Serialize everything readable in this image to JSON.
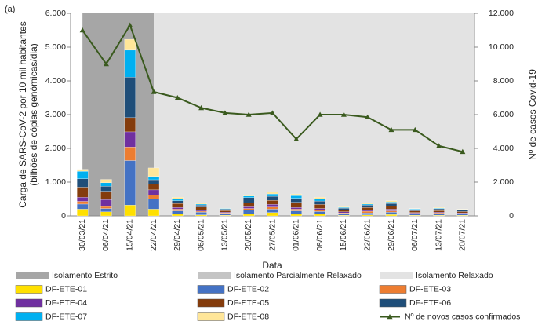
{
  "chart_data": {
    "type": "stacked_bar_line",
    "panel_label": "(a)",
    "xlabel": "Data",
    "ylabel": [
      "Carga de SARS-CoV-2 por 10 mil habitantes",
      "(bilhões de cópias genômicas/dia)"
    ],
    "y2label": "Nº de casos Covid-19",
    "categories": [
      "30/03/21",
      "06/04/21",
      "15/04/21",
      "22/04/21",
      "29/04/21",
      "06/05/21",
      "13/05/21",
      "20/05/21",
      "27/05/21",
      "01/06/21",
      "08/06/21",
      "15/06/21",
      "22/06/21",
      "29/06/21",
      "06/07/21",
      "13/07/21",
      "20/07/21"
    ],
    "ylim": [
      0,
      6
    ],
    "yticks": [
      0,
      {
        "value": 1,
        "label": "1.000"
      },
      {
        "value": 2,
        "label": "2.000"
      },
      {
        "value": 3,
        "label": "3.000"
      },
      {
        "value": 4,
        "label": "4.000"
      },
      {
        "value": 5,
        "label": "5.000"
      },
      {
        "value": 6,
        "label": "6.000"
      }
    ],
    "y2lim": [
      0,
      12000
    ],
    "y2ticks": [
      0,
      {
        "value": 2000,
        "label": "2.000"
      },
      {
        "value": 4000,
        "label": "4.000"
      },
      {
        "value": 6000,
        "label": "6.000"
      },
      {
        "value": 8000,
        "label": "8.000"
      },
      {
        "value": 10000,
        "label": "10.000"
      },
      {
        "value": 12000,
        "label": "12.000"
      }
    ],
    "regions": [
      {
        "name": "Isolamento Estrito",
        "color": "#a6a6a6",
        "start": "30/03/21",
        "end": "22/04/21"
      },
      {
        "name": "Isolamento Parcialmente Relaxado",
        "color": "#c4c4c4"
      },
      {
        "name": "Isolamento Relaxado",
        "color": "#e3e3e3",
        "start": "22/04/21",
        "end": "20/07/21"
      }
    ],
    "series": [
      {
        "name": "DF-ETE-01",
        "color": "#ffe000",
        "values": [
          0.2,
          0.12,
          0.32,
          0.2,
          0.05,
          0.03,
          0.02,
          0.05,
          0.1,
          0.05,
          0.05,
          0.02,
          0.03,
          0.04,
          0.02,
          0.02,
          0.02
        ]
      },
      {
        "name": "DF-ETE-02",
        "color": "#4472c4",
        "values": [
          0.15,
          0.1,
          1.32,
          0.3,
          0.1,
          0.08,
          0.05,
          0.12,
          0.1,
          0.1,
          0.08,
          0.05,
          0.06,
          0.07,
          0.04,
          0.04,
          0.03
        ]
      },
      {
        "name": "DF-ETE-03",
        "color": "#ed7d31",
        "values": [
          0.08,
          0.06,
          0.4,
          0.12,
          0.05,
          0.03,
          0.02,
          0.05,
          0.06,
          0.05,
          0.04,
          0.02,
          0.05,
          0.04,
          0.02,
          0.03,
          0.02
        ]
      },
      {
        "name": "DF-ETE-04",
        "color": "#7030a0",
        "values": [
          0.12,
          0.2,
          0.45,
          0.15,
          0.05,
          0.04,
          0.02,
          0.05,
          0.08,
          0.05,
          0.05,
          0.03,
          0.03,
          0.05,
          0.02,
          0.02,
          0.02
        ]
      },
      {
        "name": "DF-ETE-05",
        "color": "#843c0c",
        "values": [
          0.3,
          0.25,
          0.42,
          0.18,
          0.12,
          0.08,
          0.05,
          0.12,
          0.12,
          0.15,
          0.12,
          0.06,
          0.08,
          0.09,
          0.05,
          0.05,
          0.04
        ]
      },
      {
        "name": "DF-ETE-06",
        "color": "#1f4e79",
        "values": [
          0.25,
          0.15,
          1.2,
          0.12,
          0.08,
          0.06,
          0.04,
          0.15,
          0.12,
          0.12,
          0.1,
          0.05,
          0.07,
          0.08,
          0.04,
          0.05,
          0.04
        ]
      },
      {
        "name": "DF-ETE-07",
        "color": "#00b0f0",
        "values": [
          0.22,
          0.1,
          0.8,
          0.1,
          0.05,
          0.03,
          0.02,
          0.05,
          0.07,
          0.08,
          0.06,
          0.02,
          0.03,
          0.04,
          0.02,
          0.02,
          0.02
        ]
      },
      {
        "name": "DF-ETE-08",
        "color": "#ffe699",
        "values": [
          0.06,
          0.1,
          0.32,
          0.25,
          0.05,
          0.03,
          0.01,
          0.03,
          0.05,
          0.05,
          0.05,
          0.02,
          0.03,
          0.04,
          0.01,
          0.02,
          0.01
        ]
      }
    ],
    "line": {
      "name": "Nº de novos casos confirmados",
      "color": "#3a5a1e",
      "axis": "y2",
      "values": [
        11000,
        9000,
        11300,
        7350,
        7000,
        6400,
        6100,
        6000,
        6100,
        4550,
        6000,
        6000,
        5850,
        5100,
        5100,
        4150,
        3800
      ]
    }
  }
}
